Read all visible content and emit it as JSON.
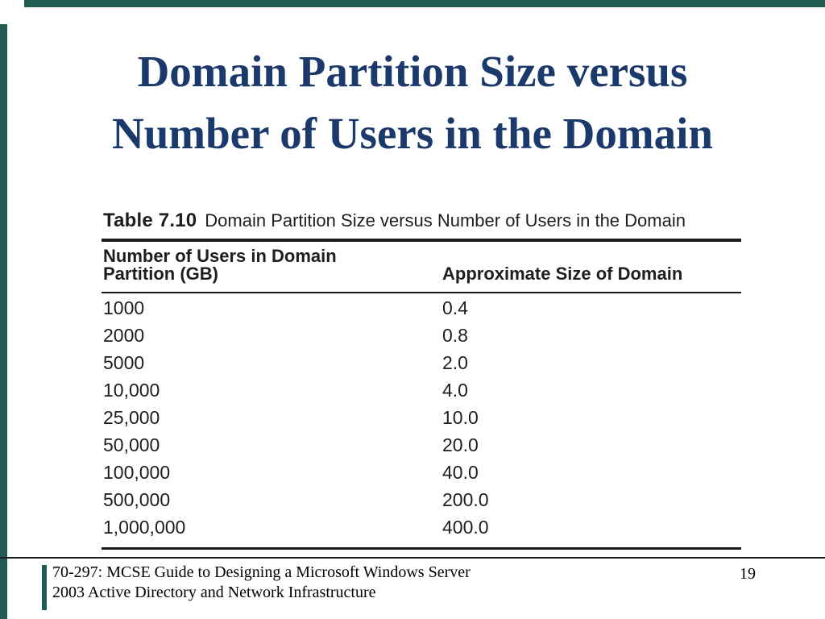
{
  "slide": {
    "title_line1": "Domain Partition Size versus",
    "title_line2": "Number of Users in the Domain",
    "colors": {
      "accent_bar": "#1f5a53",
      "title_text": "#1b3a6b",
      "table_rule": "#1a1a1a"
    }
  },
  "table": {
    "caption_label": "Table 7.10",
    "caption_text": "Domain Partition Size versus Number of Users in the Domain",
    "col1_header_line1": "Number of Users in Domain",
    "col1_header_line2": "Partition (GB)",
    "col2_header": "Approximate Size of Domain",
    "rows": [
      {
        "users": "1000",
        "size": "0.4"
      },
      {
        "users": "2000",
        "size": "0.8"
      },
      {
        "users": "5000",
        "size": "2.0"
      },
      {
        "users": "10,000",
        "size": "4.0"
      },
      {
        "users": "25,000",
        "size": "10.0"
      },
      {
        "users": "50,000",
        "size": "20.0"
      },
      {
        "users": "100,000",
        "size": "40.0"
      },
      {
        "users": "500,000",
        "size": "200.0"
      },
      {
        "users": "1,000,000",
        "size": "400.0"
      }
    ]
  },
  "footer": {
    "line1": "70-297: MCSE Guide to Designing a Microsoft Windows Server",
    "line2": "2003 Active Directory and Network Infrastructure",
    "page_number": "19"
  }
}
